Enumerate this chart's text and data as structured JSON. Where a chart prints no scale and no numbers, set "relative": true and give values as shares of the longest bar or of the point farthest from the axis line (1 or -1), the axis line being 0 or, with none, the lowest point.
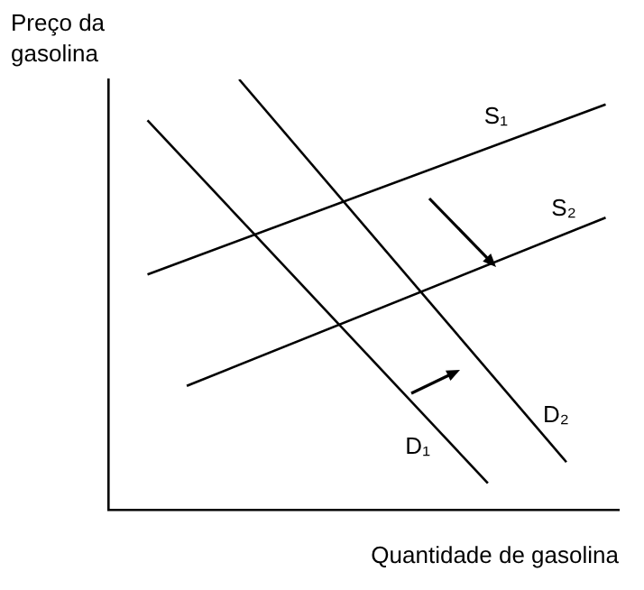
{
  "chart_data": {
    "type": "line",
    "relative": true,
    "xlabel": "Quantidade de gasolina",
    "ylabel": "Preço da gasolina",
    "grid": false,
    "legend": false,
    "marker": "none",
    "line_style": "solid",
    "categories": [
      null,
      null,
      null,
      null,
      null,
      null,
      null,
      null,
      null,
      null,
      null,
      null,
      null,
      null,
      null,
      null,
      null,
      null,
      null,
      null,
      null,
      null,
      null,
      null,
      null,
      null,
      null,
      null,
      null,
      null,
      null,
      null,
      null,
      null,
      null,
      null,
      null,
      null,
      null,
      null
    ],
    "series": [
      {
        "name": "S₁",
        "color": "#000000",
        "values": [
          null,
          null,
          null,
          0.547,
          null,
          null,
          null,
          null,
          null,
          null,
          null,
          null,
          null,
          null,
          null,
          null,
          null,
          null,
          null,
          null,
          null,
          null,
          null,
          null,
          null,
          null,
          null,
          null,
          null,
          null,
          null,
          null,
          null,
          null,
          null,
          null,
          null,
          null,
          0.942,
          null
        ]
      },
      {
        "name": "S₂",
        "color": "#000000",
        "values": [
          null,
          null,
          null,
          null,
          null,
          null,
          0.288,
          null,
          null,
          null,
          null,
          null,
          null,
          null,
          null,
          null,
          null,
          null,
          null,
          null,
          null,
          null,
          null,
          null,
          null,
          null,
          null,
          null,
          null,
          null,
          null,
          null,
          null,
          null,
          null,
          null,
          null,
          null,
          0.679,
          null
        ]
      },
      {
        "name": "D₁",
        "color": "#000000",
        "values": [
          null,
          null,
          null,
          0.905,
          null,
          null,
          null,
          null,
          null,
          null,
          null,
          null,
          null,
          null,
          null,
          null,
          null,
          null,
          null,
          null,
          null,
          null,
          null,
          null,
          null,
          null,
          null,
          null,
          null,
          0.062,
          null,
          null,
          null,
          null,
          null,
          null,
          null,
          null,
          null,
          null
        ]
      },
      {
        "name": "D₂",
        "color": "#000000",
        "values": [
          null,
          null,
          null,
          null,
          null,
          null,
          null,
          null,
          null,
          null,
          1.0,
          null,
          null,
          null,
          null,
          null,
          null,
          null,
          null,
          null,
          null,
          null,
          null,
          null,
          null,
          null,
          null,
          null,
          null,
          null,
          null,
          null,
          null,
          null,
          null,
          0.111,
          null,
          null,
          null,
          null
        ]
      }
    ]
  }
}
